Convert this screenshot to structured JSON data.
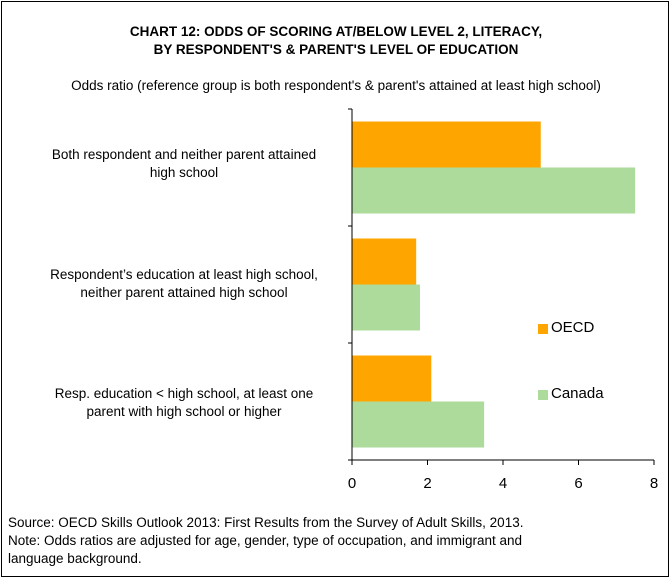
{
  "header": {
    "title_line1": "CHART 12: ODDS OF SCORING AT/BELOW LEVEL 2, LITERACY,",
    "title_line2": "BY RESPONDENT'S & PARENT'S LEVEL OF EDUCATION",
    "subtitle": "Odds ratio (reference group is both respondent's & parent's attained at least high school)"
  },
  "chart_data": {
    "type": "bar",
    "orientation": "horizontal",
    "categories": [
      {
        "line1": "Both respondent and neither parent attained",
        "line2": "high school"
      },
      {
        "line1": "Respondent’s education at least high school,",
        "line2": "neither parent attained high school"
      },
      {
        "line1": "Resp. education < high school, at least one",
        "line2": "parent with high school or higher"
      }
    ],
    "series": [
      {
        "name": "OECD",
        "color": "#FFA500",
        "values": [
          5.0,
          1.7,
          2.1
        ]
      },
      {
        "name": "Canada",
        "color": "#ADDB9B",
        "values": [
          7.5,
          1.8,
          3.5
        ]
      }
    ],
    "xlim": [
      0,
      8
    ],
    "xticks": [
      "0",
      "2",
      "4",
      "6",
      "8"
    ],
    "grid": false,
    "legend_position": "right"
  },
  "footer": {
    "line1": "Source: OECD Skills Outlook 2013: First Results from the Survey of Adult Skills, 2013.",
    "line2": "Note: Odds ratios are adjusted for age, gender, type of occupation, and immigrant and",
    "line3": "language background."
  }
}
